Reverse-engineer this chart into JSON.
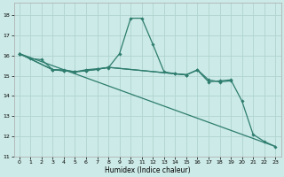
{
  "xlabel": "Humidex (Indice chaleur)",
  "bg_color": "#cceae7",
  "grid_color": "#b0d4d0",
  "line_color": "#2e7d6e",
  "xlim": [
    -0.5,
    23.5
  ],
  "ylim": [
    11,
    18.6
  ],
  "yticks": [
    11,
    12,
    13,
    14,
    15,
    16,
    17,
    18
  ],
  "xticks": [
    0,
    1,
    2,
    3,
    4,
    5,
    6,
    7,
    8,
    9,
    10,
    11,
    12,
    13,
    14,
    15,
    16,
    17,
    18,
    19,
    20,
    21,
    22,
    23
  ],
  "series1_x": [
    0,
    1,
    2,
    3,
    4,
    5,
    6,
    7,
    8,
    9,
    10,
    11,
    12,
    13,
    14,
    15,
    16,
    17,
    18,
    19
  ],
  "series1_y": [
    16.1,
    15.85,
    15.8,
    15.3,
    15.3,
    15.2,
    15.3,
    15.35,
    15.4,
    16.1,
    17.85,
    17.85,
    16.55,
    15.2,
    15.1,
    15.05,
    15.3,
    14.8,
    14.7,
    14.75
  ],
  "series2_x": [
    0,
    3,
    4,
    5,
    6,
    7,
    8,
    15
  ],
  "series2_y": [
    16.1,
    15.3,
    15.25,
    15.2,
    15.25,
    15.32,
    15.42,
    15.05
  ],
  "series3_x": [
    0,
    3,
    4,
    5,
    6,
    7,
    8,
    14,
    15,
    16,
    17,
    18,
    19,
    20,
    21,
    22,
    23
  ],
  "series3_y": [
    16.1,
    15.3,
    15.25,
    15.2,
    15.25,
    15.32,
    15.42,
    15.1,
    15.05,
    15.28,
    14.7,
    14.75,
    14.8,
    13.75,
    12.1,
    11.75,
    11.5
  ],
  "series4_x": [
    0,
    23
  ],
  "series4_y": [
    16.1,
    11.5
  ]
}
